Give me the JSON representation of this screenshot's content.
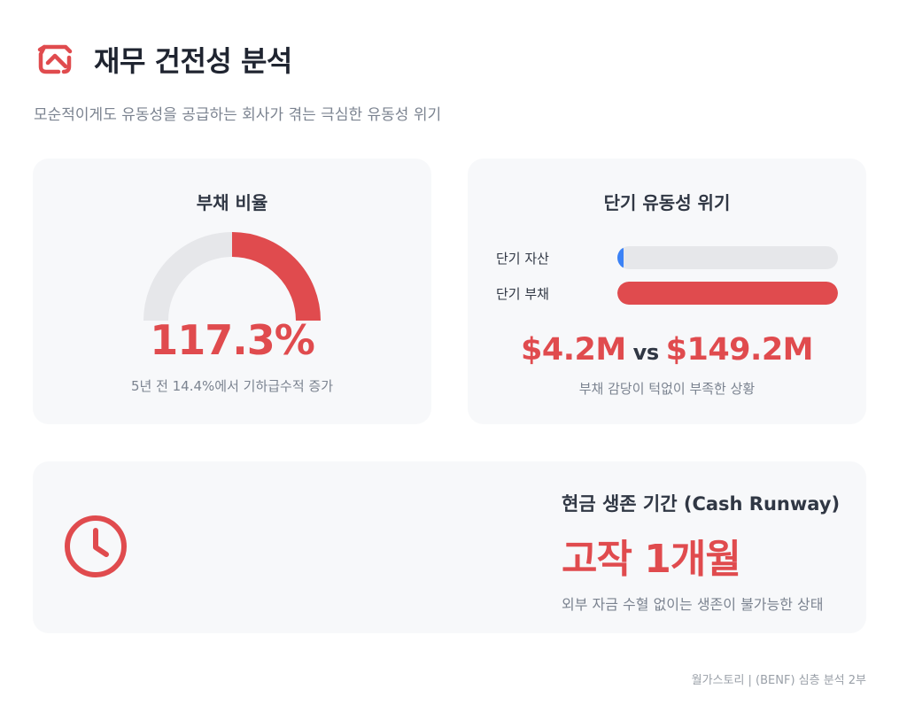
{
  "header": {
    "title": "재무 건전성 분석",
    "icon": "loop-arrows-icon"
  },
  "subtitle": "모순적이게도 유동성을 공급하는 회사가 겪는 극심한 유동성 위기",
  "debt_ratio": {
    "title": "부채 비율",
    "value": "117.3%",
    "note": "5년 전 14.4%에서 기하급수적 증가",
    "gauge_fraction": 0.58
  },
  "liquidity": {
    "title": "단기 유동성 위기",
    "bars": [
      {
        "label": "단기 자산",
        "fraction": 0.028
      },
      {
        "label": "단기 부채",
        "fraction": 1.0
      }
    ],
    "assets_value": "$4.2M",
    "vs": "vs",
    "liabilities_value": "$149.2M",
    "note": "부채 감당이 턱없이 부족한 상황"
  },
  "runway": {
    "title": "현금 생존 기간 (Cash Runway)",
    "value": "고작 1개월",
    "note": "외부 자금 수혈 없이는 생존이 불가능한 상태",
    "icon": "clock-icon"
  },
  "footer": "월가스토리 | (BENF) 심층 분석 2부",
  "colors": {
    "accent": "#e04b4e",
    "asset_bar": "#3b82f6",
    "track": "#e6e7ea",
    "card": "#f7f8fa"
  }
}
